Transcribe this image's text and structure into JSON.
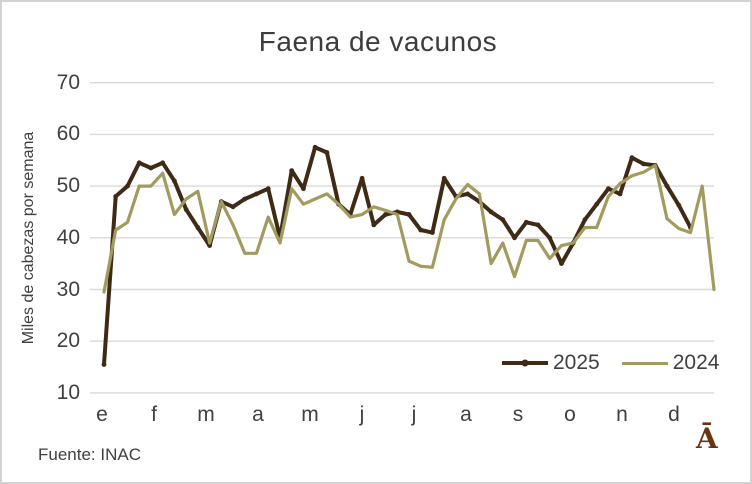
{
  "frame": {
    "source": "Fuente: INAC",
    "watermark": "Ā"
  },
  "chart_data": {
    "type": "line",
    "title": "Faena de vacunos",
    "xlabel": "",
    "ylabel": "Miles de cabezas por semana",
    "ylim": [
      10,
      70
    ],
    "yticks": [
      70,
      60,
      50,
      40,
      30,
      20,
      10
    ],
    "x_month_labels": [
      "e",
      "f",
      "m",
      "a",
      "m",
      "j",
      "j",
      "a",
      "s",
      "o",
      "n",
      "d"
    ],
    "x_unit": "week of year",
    "grid": true,
    "gridline_color": "#d9d9d9",
    "legend_position": "inside-bottom-right",
    "series": [
      {
        "name": "2025",
        "color": "#3F2A15",
        "marker": "dot",
        "stroke_width": 4,
        "values": [
          15.5,
          48,
          50,
          54.5,
          53.5,
          54.5,
          51,
          45.5,
          42,
          38.5,
          47,
          46,
          47.5,
          48.5,
          49.5,
          40,
          53,
          49.5,
          57.5,
          56.5,
          46.5,
          44.5,
          51.5,
          42.5,
          44.5,
          45,
          44.5,
          41.5,
          41,
          51.5,
          48,
          48.5,
          47,
          45,
          43.5,
          40,
          43,
          42.5,
          40,
          35,
          39,
          43.5,
          46.5,
          49.5,
          48.5,
          55.5,
          54.3,
          54,
          50,
          46.3,
          42
        ]
      },
      {
        "name": "2024",
        "color": "#A29B5F",
        "marker": "none",
        "stroke_width": 3.2,
        "values": [
          29.5,
          41.5,
          43,
          50,
          50,
          52.5,
          44.5,
          47.5,
          49,
          39,
          47,
          42.5,
          37,
          37,
          44,
          39,
          49.5,
          46.5,
          47.5,
          48.5,
          46.5,
          44,
          44.5,
          46,
          45.3,
          44.5,
          35.5,
          34.5,
          34.3,
          43.5,
          47.5,
          50.3,
          48.5,
          35,
          39,
          32.5,
          39.5,
          39.5,
          36,
          38.5,
          39,
          42,
          42,
          48,
          50.5,
          52,
          52.7,
          54,
          43.7,
          41.8,
          41,
          50,
          30
        ]
      }
    ]
  }
}
